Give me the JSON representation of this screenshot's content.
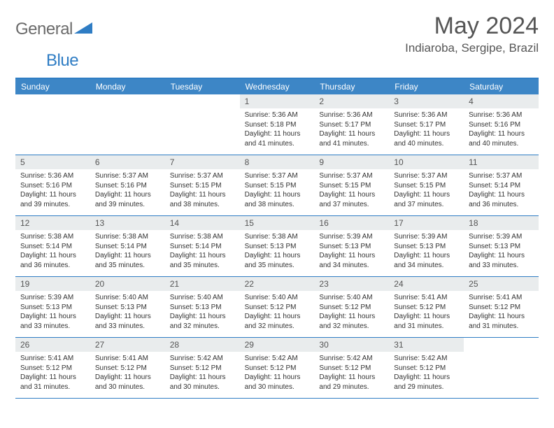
{
  "logo": {
    "word1": "General",
    "word2": "Blue"
  },
  "title": "May 2024",
  "location": "Indiaroba, Sergipe, Brazil",
  "colors": {
    "header_bg": "#3d86c6",
    "border": "#2f7dc4",
    "daynum_bg": "#e9eced",
    "logo_gray": "#6b6b6b",
    "logo_blue": "#2f7dc4",
    "text": "#333333",
    "title_text": "#555555"
  },
  "day_names": [
    "Sunday",
    "Monday",
    "Tuesday",
    "Wednesday",
    "Thursday",
    "Friday",
    "Saturday"
  ],
  "weeks": [
    [
      null,
      null,
      null,
      {
        "n": "1",
        "sr": "5:36 AM",
        "ss": "5:18 PM",
        "dl": "11 hours and 41 minutes."
      },
      {
        "n": "2",
        "sr": "5:36 AM",
        "ss": "5:17 PM",
        "dl": "11 hours and 41 minutes."
      },
      {
        "n": "3",
        "sr": "5:36 AM",
        "ss": "5:17 PM",
        "dl": "11 hours and 40 minutes."
      },
      {
        "n": "4",
        "sr": "5:36 AM",
        "ss": "5:16 PM",
        "dl": "11 hours and 40 minutes."
      }
    ],
    [
      {
        "n": "5",
        "sr": "5:36 AM",
        "ss": "5:16 PM",
        "dl": "11 hours and 39 minutes."
      },
      {
        "n": "6",
        "sr": "5:37 AM",
        "ss": "5:16 PM",
        "dl": "11 hours and 39 minutes."
      },
      {
        "n": "7",
        "sr": "5:37 AM",
        "ss": "5:15 PM",
        "dl": "11 hours and 38 minutes."
      },
      {
        "n": "8",
        "sr": "5:37 AM",
        "ss": "5:15 PM",
        "dl": "11 hours and 38 minutes."
      },
      {
        "n": "9",
        "sr": "5:37 AM",
        "ss": "5:15 PM",
        "dl": "11 hours and 37 minutes."
      },
      {
        "n": "10",
        "sr": "5:37 AM",
        "ss": "5:15 PM",
        "dl": "11 hours and 37 minutes."
      },
      {
        "n": "11",
        "sr": "5:37 AM",
        "ss": "5:14 PM",
        "dl": "11 hours and 36 minutes."
      }
    ],
    [
      {
        "n": "12",
        "sr": "5:38 AM",
        "ss": "5:14 PM",
        "dl": "11 hours and 36 minutes."
      },
      {
        "n": "13",
        "sr": "5:38 AM",
        "ss": "5:14 PM",
        "dl": "11 hours and 35 minutes."
      },
      {
        "n": "14",
        "sr": "5:38 AM",
        "ss": "5:14 PM",
        "dl": "11 hours and 35 minutes."
      },
      {
        "n": "15",
        "sr": "5:38 AM",
        "ss": "5:13 PM",
        "dl": "11 hours and 35 minutes."
      },
      {
        "n": "16",
        "sr": "5:39 AM",
        "ss": "5:13 PM",
        "dl": "11 hours and 34 minutes."
      },
      {
        "n": "17",
        "sr": "5:39 AM",
        "ss": "5:13 PM",
        "dl": "11 hours and 34 minutes."
      },
      {
        "n": "18",
        "sr": "5:39 AM",
        "ss": "5:13 PM",
        "dl": "11 hours and 33 minutes."
      }
    ],
    [
      {
        "n": "19",
        "sr": "5:39 AM",
        "ss": "5:13 PM",
        "dl": "11 hours and 33 minutes."
      },
      {
        "n": "20",
        "sr": "5:40 AM",
        "ss": "5:13 PM",
        "dl": "11 hours and 33 minutes."
      },
      {
        "n": "21",
        "sr": "5:40 AM",
        "ss": "5:13 PM",
        "dl": "11 hours and 32 minutes."
      },
      {
        "n": "22",
        "sr": "5:40 AM",
        "ss": "5:12 PM",
        "dl": "11 hours and 32 minutes."
      },
      {
        "n": "23",
        "sr": "5:40 AM",
        "ss": "5:12 PM",
        "dl": "11 hours and 32 minutes."
      },
      {
        "n": "24",
        "sr": "5:41 AM",
        "ss": "5:12 PM",
        "dl": "11 hours and 31 minutes."
      },
      {
        "n": "25",
        "sr": "5:41 AM",
        "ss": "5:12 PM",
        "dl": "11 hours and 31 minutes."
      }
    ],
    [
      {
        "n": "26",
        "sr": "5:41 AM",
        "ss": "5:12 PM",
        "dl": "11 hours and 31 minutes."
      },
      {
        "n": "27",
        "sr": "5:41 AM",
        "ss": "5:12 PM",
        "dl": "11 hours and 30 minutes."
      },
      {
        "n": "28",
        "sr": "5:42 AM",
        "ss": "5:12 PM",
        "dl": "11 hours and 30 minutes."
      },
      {
        "n": "29",
        "sr": "5:42 AM",
        "ss": "5:12 PM",
        "dl": "11 hours and 30 minutes."
      },
      {
        "n": "30",
        "sr": "5:42 AM",
        "ss": "5:12 PM",
        "dl": "11 hours and 29 minutes."
      },
      {
        "n": "31",
        "sr": "5:42 AM",
        "ss": "5:12 PM",
        "dl": "11 hours and 29 minutes."
      },
      null
    ]
  ],
  "labels": {
    "sunrise": "Sunrise:",
    "sunset": "Sunset:",
    "daylight": "Daylight:"
  }
}
